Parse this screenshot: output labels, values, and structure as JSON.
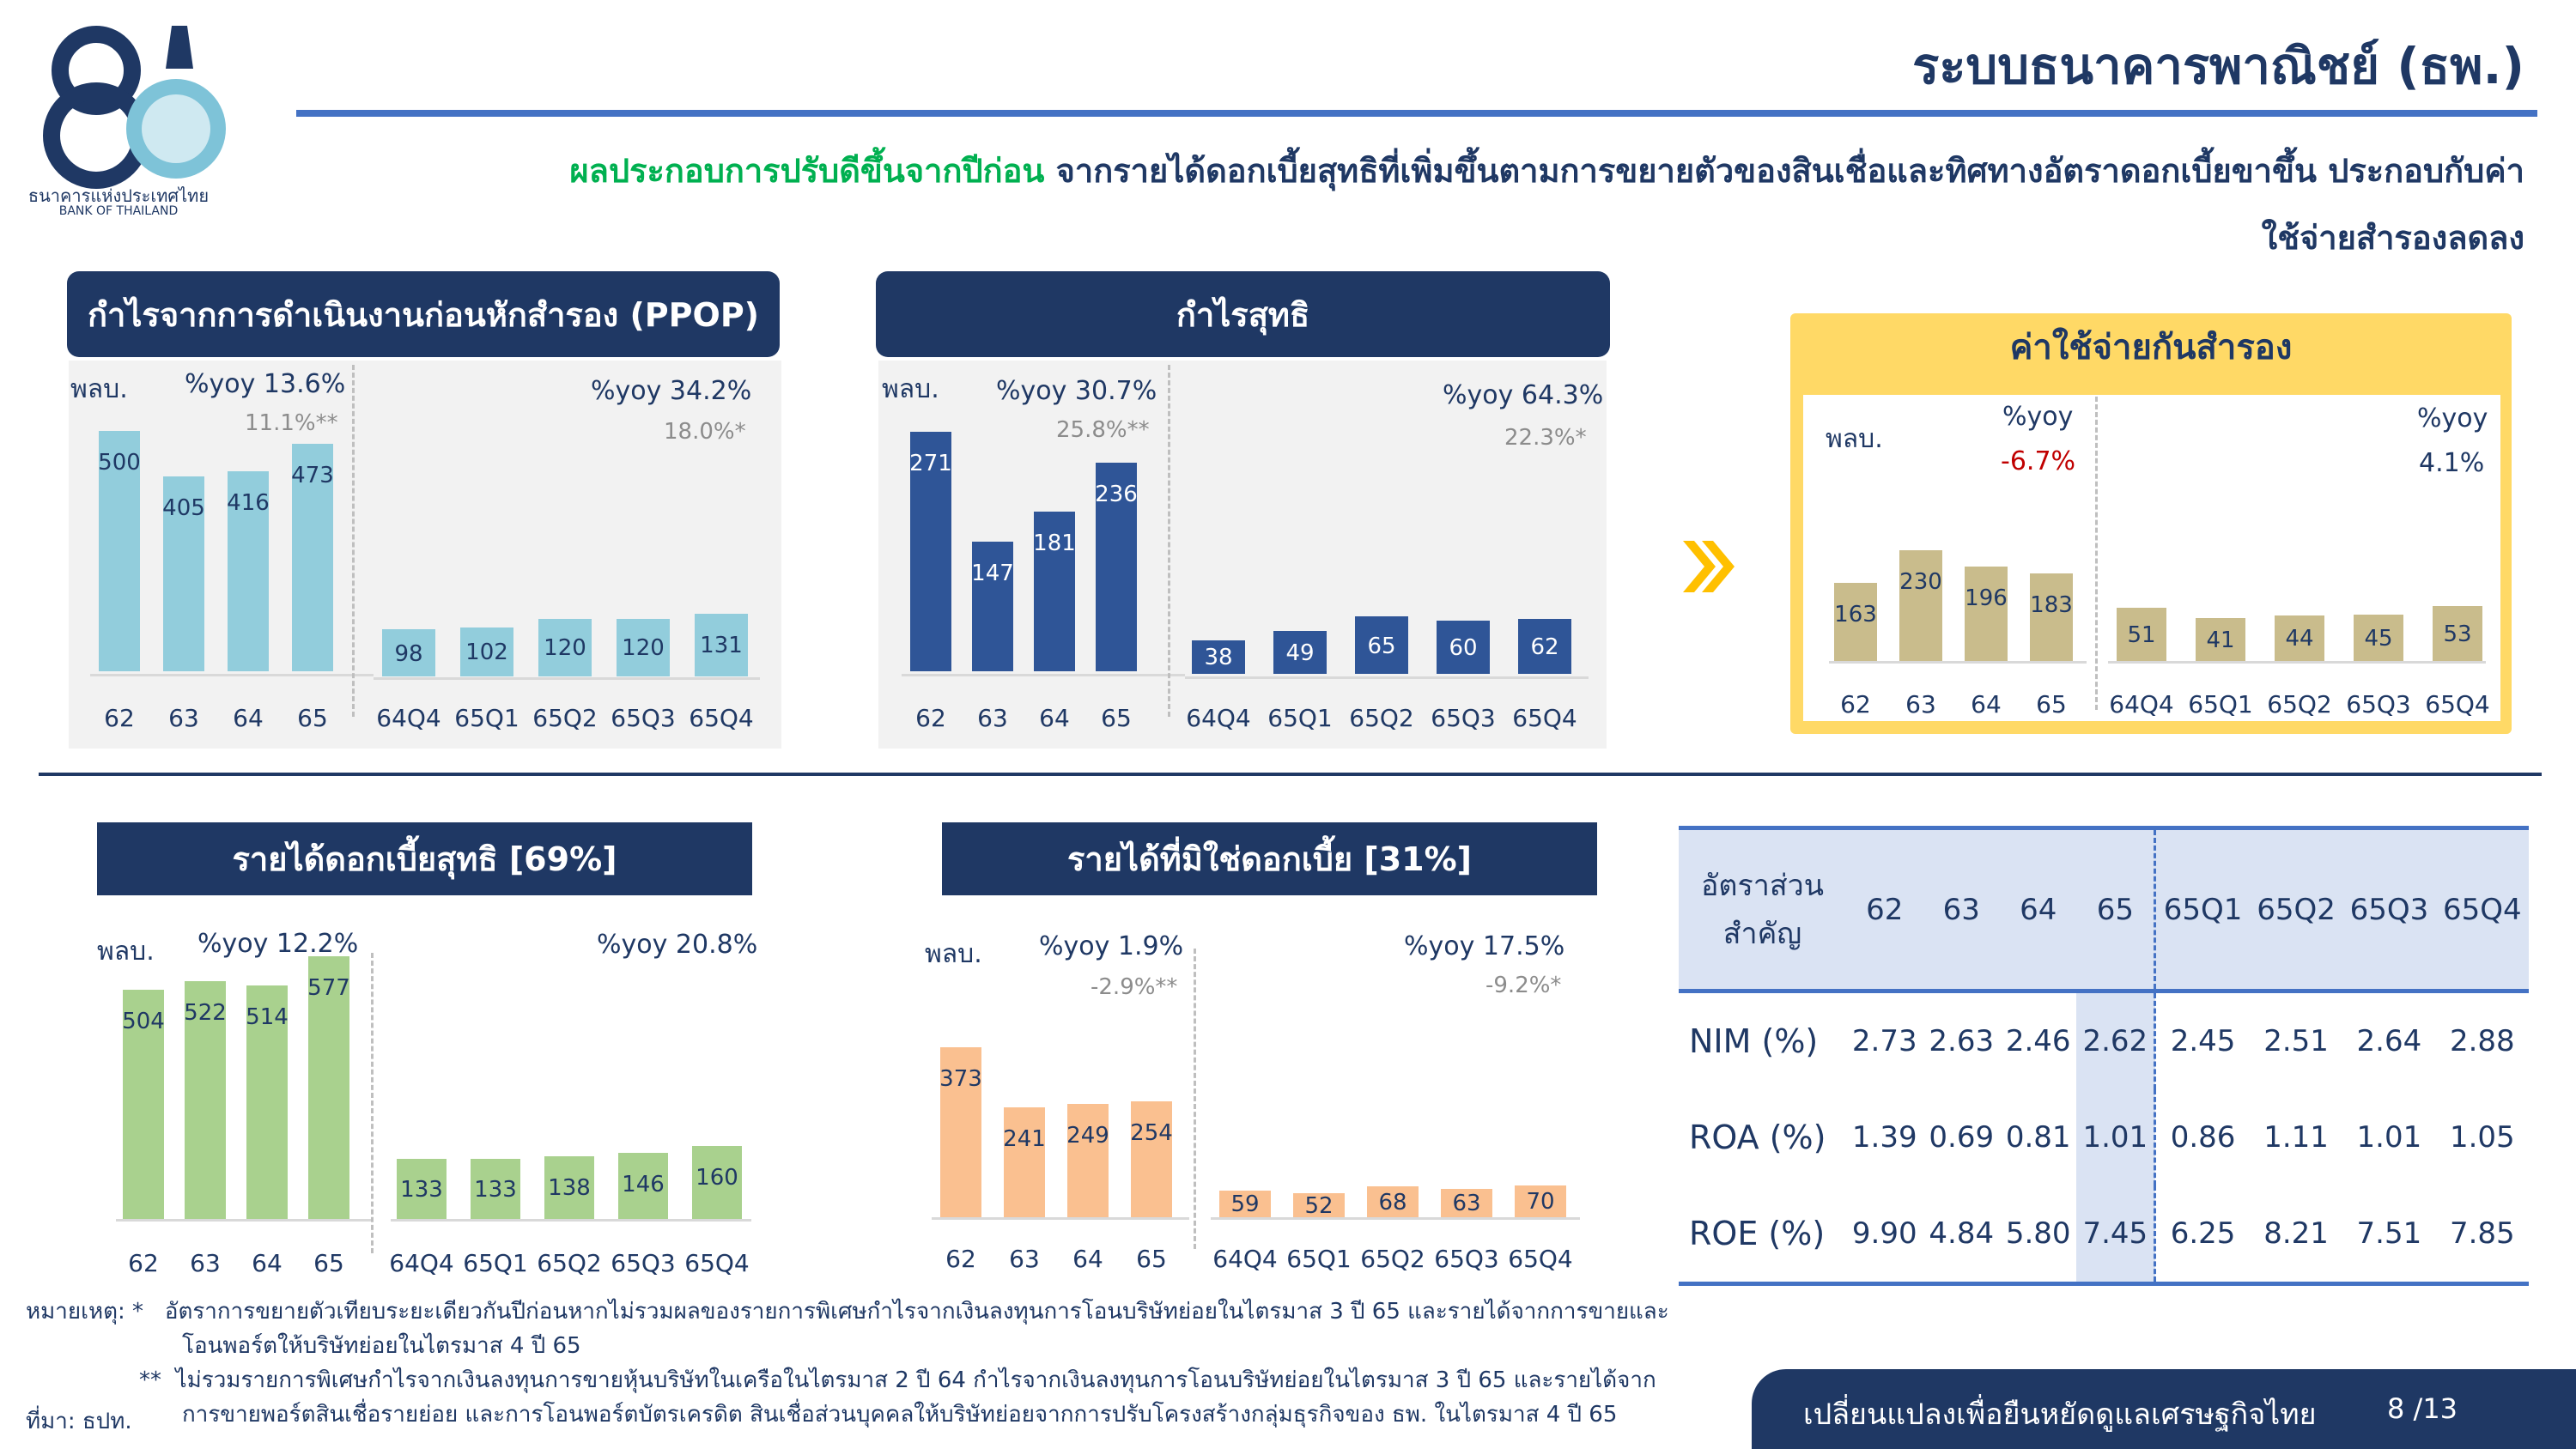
{
  "brand": {
    "name_th": "ธนาคารแห่งประเทศไทย",
    "name_en": "BANK OF THAILAND",
    "logo_text": "80"
  },
  "header": {
    "title": "ระบบธนาคารพาณิชย์ (ธพ.)",
    "subtitle_highlight": "ผลประกอบการปรับดีขึ้นจากปีก่อน",
    "subtitle_rest": " จากรายได้ดอกเบี้ยสุทธิที่เพิ่มขึ้นตามการขยายตัวของสินเชื่อและทิศทางอัตราดอกเบี้ยขาขึ้น ประกอบกับค่าใช้จ่ายสำรองลดลง"
  },
  "colors": {
    "navy": "#1f3864",
    "ppop": "#92cddc",
    "net_profit": "#2f5597",
    "provision": "#c9bc8c",
    "nii": "#a9d18e",
    "non_ii": "#fac090",
    "gold": "#ffd966",
    "red": "#c00000"
  },
  "chart_data": [
    {
      "id": "ppop",
      "type": "bar",
      "title": "กำไรจากการดำเนินงานก่อนหักสำรอง (PPOP)",
      "unit_label": "พลบ.",
      "annual": {
        "categories": [
          "62",
          "63",
          "64",
          "65"
        ],
        "values": [
          500,
          405,
          416,
          473
        ],
        "yoy": "%yoy 13.6%",
        "yoy_sub": "11.1%**"
      },
      "quarterly": {
        "categories": [
          "64Q4",
          "65Q1",
          "65Q2",
          "65Q3",
          "65Q4"
        ],
        "values": [
          98,
          102,
          120,
          120,
          131
        ],
        "yoy": "%yoy 34.2%",
        "yoy_sub": "18.0%*"
      }
    },
    {
      "id": "net_profit",
      "type": "bar",
      "title": "กำไรสุทธิ",
      "unit_label": "พลบ.",
      "annual": {
        "categories": [
          "62",
          "63",
          "64",
          "65"
        ],
        "values": [
          271,
          147,
          181,
          236
        ],
        "yoy": "%yoy 30.7%",
        "yoy_sub": "25.8%**"
      },
      "quarterly": {
        "categories": [
          "64Q4",
          "65Q1",
          "65Q2",
          "65Q3",
          "65Q4"
        ],
        "values": [
          38,
          49,
          65,
          60,
          62
        ],
        "yoy": "%yoy 64.3%",
        "yoy_sub": "22.3%*"
      }
    },
    {
      "id": "provision",
      "type": "bar",
      "title": "ค่าใช้จ่ายกันสำรอง",
      "unit_label": "พลบ.",
      "annual": {
        "categories": [
          "62",
          "63",
          "64",
          "65"
        ],
        "values": [
          163,
          230,
          196,
          183
        ],
        "yoy_label": "%yoy",
        "yoy": "-6.7%"
      },
      "quarterly": {
        "categories": [
          "64Q4",
          "65Q1",
          "65Q2",
          "65Q3",
          "65Q4"
        ],
        "values": [
          51,
          41,
          44,
          45,
          53
        ],
        "yoy_label": "%yoy",
        "yoy": "4.1%"
      }
    },
    {
      "id": "nii",
      "type": "bar",
      "title": "รายได้ดอกเบี้ยสุทธิ [69%]",
      "unit_label": "พลบ.",
      "annual": {
        "categories": [
          "62",
          "63",
          "64",
          "65"
        ],
        "values": [
          504,
          522,
          514,
          577
        ],
        "yoy": "%yoy 12.2%"
      },
      "quarterly": {
        "categories": [
          "64Q4",
          "65Q1",
          "65Q2",
          "65Q3",
          "65Q4"
        ],
        "values": [
          133,
          133,
          138,
          146,
          160
        ],
        "yoy": "%yoy 20.8%"
      }
    },
    {
      "id": "non_ii",
      "type": "bar",
      "title": "รายได้ที่มิใช่ดอกเบี้ย [31%]",
      "unit_label": "พลบ.",
      "annual": {
        "categories": [
          "62",
          "63",
          "64",
          "65"
        ],
        "values": [
          373,
          241,
          249,
          254
        ],
        "yoy": "%yoy 1.9%",
        "yoy_sub": "-2.9%**"
      },
      "quarterly": {
        "categories": [
          "64Q4",
          "65Q1",
          "65Q2",
          "65Q3",
          "65Q4"
        ],
        "values": [
          59,
          52,
          68,
          63,
          70
        ],
        "yoy": "%yoy 17.5%",
        "yoy_sub": "-9.2%*"
      }
    }
  ],
  "ratio_table": {
    "corner_line1": "อัตราส่วน",
    "corner_line2": "สำคัญ",
    "columns": [
      "62",
      "63",
      "64",
      "65",
      "65Q1",
      "65Q2",
      "65Q3",
      "65Q4"
    ],
    "rows": [
      {
        "label": "NIM (%)",
        "values": [
          "2.73",
          "2.63",
          "2.46",
          "2.62",
          "2.45",
          "2.51",
          "2.64",
          "2.88"
        ]
      },
      {
        "label": "ROA (%)",
        "values": [
          "1.39",
          "0.69",
          "0.81",
          "1.01",
          "0.86",
          "1.11",
          "1.01",
          "1.05"
        ]
      },
      {
        "label": "ROE (%)",
        "values": [
          "9.90",
          "4.84",
          "5.80",
          "7.45",
          "6.25",
          "8.21",
          "7.51",
          "7.85"
        ]
      }
    ]
  },
  "notes": {
    "label": "หมายเหตุ:",
    "star1_mark": "*",
    "star1": "อัตราการขยายตัวเทียบระยะเดียวกันปีก่อนหากไม่รวมผลของรายการพิเศษกำไรจากเงินลงทุนการโอนบริษัทย่อยในไตรมาส 3 ปี 65 และรายได้จากการขายและ",
    "star1_cont": "โอนพอร์ตให้บริษัทย่อยในไตรมาส 4 ปี 65",
    "star2_mark": "**",
    "star2": "ไม่รวมรายการพิเศษกำไรจากเงินลงทุนการขายหุ้นบริษัทในเครือในไตรมาส 2 ปี 64 กำไรจากเงินลงทุนการโอนบริษัทย่อยในไตรมาส 3 ปี 65 และรายได้จาก",
    "star2_cont": "การขายพอร์ตสินเชื่อรายย่อย และการโอนพอร์ตบัตรเครดิต สินเชื่อส่วนบุคคลให้บริษัทย่อยจากการปรับโครงสร้างกลุ่มธุรกิจของ ธพ. ในไตรมาส 4 ปี 65",
    "source": "ที่มา: ธปท."
  },
  "footer": {
    "slogan": "เปลี่ยนแปลงเพื่อยืนหยัดดูแลเศรษฐกิจไทย",
    "page": "8 /13"
  }
}
